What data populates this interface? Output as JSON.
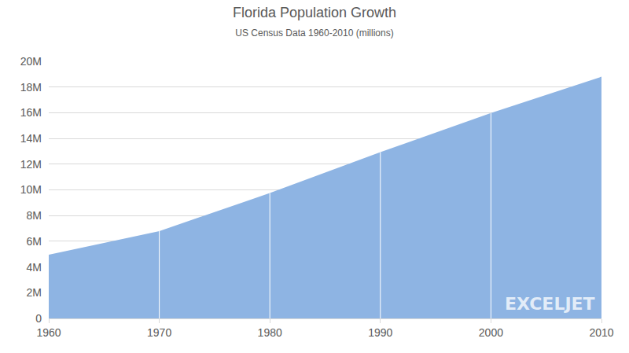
{
  "chart_data": {
    "type": "area",
    "title": "Florida Population Growth",
    "subtitle": "US Census Data 1960-2010 (millions)",
    "x": [
      1960,
      1970,
      1980,
      1990,
      2000,
      2010
    ],
    "values": [
      4.95,
      6.79,
      9.75,
      12.94,
      15.98,
      18.8
    ],
    "color": "#8eb4e3",
    "xlim": [
      1960,
      2010
    ],
    "xticks": [
      1960,
      1970,
      1980,
      1990,
      2000,
      2010
    ],
    "ylim": [
      0,
      20
    ],
    "yticks": [
      0,
      {
        "value": 2,
        "label": "2M"
      },
      {
        "value": 4,
        "label": "4M"
      },
      {
        "value": 6,
        "label": "6M"
      },
      {
        "value": 8,
        "label": "8M"
      },
      {
        "value": 10,
        "label": "10M"
      },
      {
        "value": 12,
        "label": "12M"
      },
      {
        "value": 14,
        "label": "14M"
      },
      {
        "value": 16,
        "label": "16M"
      },
      {
        "value": 18,
        "label": "18M"
      },
      {
        "value": 20,
        "label": "20M"
      }
    ],
    "grid": true,
    "annotations": [
      "EXCELJET"
    ]
  }
}
